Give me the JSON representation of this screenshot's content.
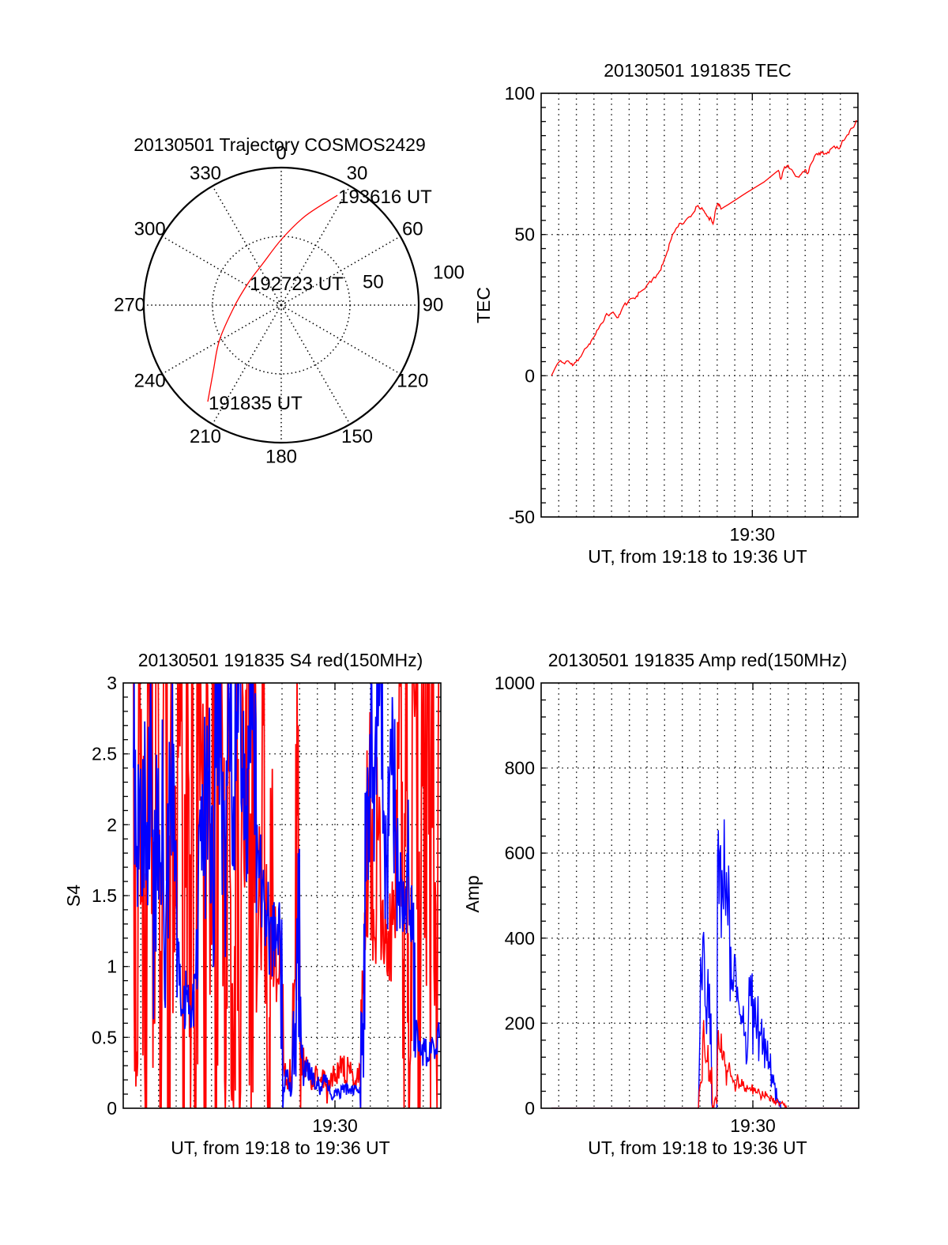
{
  "figure": {
    "colors": {
      "red": "#ff0000",
      "blue": "#0000ff",
      "axis": "#000000"
    }
  },
  "chart_data": [
    {
      "type": "polar",
      "title": "20130501 Trajectory COSMOS2429",
      "rmax": 100,
      "angle_ticks": [
        {
          "value": 0,
          "label": "0"
        },
        {
          "value": 30,
          "label": "30"
        },
        {
          "value": 60,
          "label": "60"
        },
        {
          "value": 90,
          "label": "90"
        },
        {
          "value": 120,
          "label": "120"
        },
        {
          "value": 150,
          "label": "150"
        },
        {
          "value": 180,
          "label": "180"
        },
        {
          "value": 210,
          "label": "210"
        },
        {
          "value": 240,
          "label": "240"
        },
        {
          "value": 270,
          "label": "270"
        },
        {
          "value": 300,
          "label": "300"
        },
        {
          "value": 330,
          "label": "330"
        }
      ],
      "radial_ticks": [
        {
          "value": 50,
          "label": "50"
        },
        {
          "value": 100,
          "label": "100"
        }
      ],
      "grid": true,
      "trajectory": {
        "color": "#ff0000",
        "points_az_r": [
          [
            217.3,
            88.2
          ],
          [
            225.7,
            69.1
          ],
          [
            240.6,
            51.5
          ],
          [
            269.0,
            33.9
          ],
          [
            305.3,
            28.9
          ],
          [
            336.5,
            33.2
          ],
          [
            0.7,
            48.3
          ],
          [
            15.3,
            67.4
          ],
          [
            27.1,
            89.7
          ]
        ]
      },
      "time_labels": [
        {
          "label": "191835 UT",
          "point_index": 0
        },
        {
          "label": "192723 UT",
          "point_index": 4
        },
        {
          "label": "193616 UT",
          "point_index": 8
        }
      ]
    },
    {
      "type": "line",
      "title": "20130501 191835 TEC",
      "xlabel": "UT, from 19:18 to 19:36 UT",
      "ylabel": "TEC",
      "xlim": [
        0,
        1080
      ],
      "ylim": [
        -50,
        100
      ],
      "yticks": [
        {
          "value": 100,
          "label": "100"
        },
        {
          "value": 50,
          "label": "50"
        },
        {
          "value": 0,
          "label": "0"
        },
        {
          "value": -50,
          "label": "-50"
        }
      ],
      "yminor": 5,
      "xticks": [
        {
          "value": 720,
          "label": "19:30"
        }
      ],
      "xgrid_step": 60,
      "grid": true,
      "series": [
        {
          "color": "#ff0000",
          "points": [
            [
              35,
              0
            ],
            [
              50,
              3.2
            ],
            [
              62,
              5
            ],
            [
              75,
              4.6
            ],
            [
              90,
              5.3
            ],
            [
              100,
              4.4
            ],
            [
              107,
              3.6
            ],
            [
              118,
              4.8
            ],
            [
              130,
              6.2
            ],
            [
              148,
              9.5
            ],
            [
              160,
              10.6
            ],
            [
              170,
              12.2
            ],
            [
              180,
              13.7
            ],
            [
              195,
              16.5
            ],
            [
              210,
              18.8
            ],
            [
              223,
              22
            ],
            [
              235,
              21.8
            ],
            [
              250,
              21.9
            ],
            [
              263,
              20.6
            ],
            [
              272,
              22.7
            ],
            [
              282,
              25
            ],
            [
              295,
              25.8
            ],
            [
              310,
              27.4
            ],
            [
              325,
              28.2
            ],
            [
              336,
              29.6
            ],
            [
              349,
              30.5
            ],
            [
              365,
              32.6
            ],
            [
              380,
              34.2
            ],
            [
              395,
              35.8
            ],
            [
              408,
              37.4
            ],
            [
              418,
              40.6
            ],
            [
              430,
              44
            ],
            [
              440,
              47.5
            ],
            [
              451,
              50.5
            ],
            [
              462,
              52.4
            ],
            [
              476,
              54
            ],
            [
              490,
              54.6
            ],
            [
              505,
              56.3
            ],
            [
              520,
              57.8
            ],
            [
              532,
              60
            ],
            [
              540,
              59.3
            ],
            [
              552,
              58.7
            ],
            [
              562,
              57.2
            ],
            [
              570,
              56
            ],
            [
              580,
              55.4
            ],
            [
              586,
              53.7
            ],
            [
              593,
              58
            ],
            [
              602,
              61
            ],
            [
              608,
              60.6
            ],
            [
              613,
              59
            ],
            [
              650,
              61.4
            ],
            [
              700,
              64.8
            ],
            [
              760,
              68.6
            ],
            [
              800,
              72
            ],
            [
              809,
              72.7
            ],
            [
              817,
              69.6
            ],
            [
              826,
              72.8
            ],
            [
              838,
              74.3
            ],
            [
              850,
              73.2
            ],
            [
              862,
              71.6
            ],
            [
              879,
              70.3
            ],
            [
              888,
              71.6
            ],
            [
              900,
              73
            ],
            [
              908,
              71.5
            ],
            [
              918,
              74.6
            ],
            [
              932,
              77.7
            ],
            [
              944,
              78.2
            ],
            [
              954,
              79.3
            ],
            [
              964,
              78.4
            ],
            [
              973,
              78.5
            ],
            [
              985,
              80.1
            ],
            [
              999,
              81.3
            ],
            [
              1013,
              80.4
            ],
            [
              1024,
              82.2
            ],
            [
              1034,
              83.5
            ],
            [
              1048,
              85.4
            ],
            [
              1061,
              87.7
            ],
            [
              1075,
              90.5
            ]
          ]
        }
      ]
    },
    {
      "type": "line",
      "title": "20130501 191835 S4 red(150MHz)",
      "xlabel": "UT, from 19:18 to 19:36 UT",
      "ylabel": "S4",
      "xlim": [
        0,
        1080
      ],
      "ylim": [
        0,
        3
      ],
      "yticks": [
        {
          "value": 3,
          "label": "3"
        },
        {
          "value": 2.5,
          "label": "2.5"
        },
        {
          "value": 2,
          "label": "2"
        },
        {
          "value": 1.5,
          "label": "1.5"
        },
        {
          "value": 1,
          "label": "1"
        },
        {
          "value": 0.5,
          "label": "0.5"
        },
        {
          "value": 0,
          "label": "0"
        }
      ],
      "yminor": 0.1,
      "xticks": [
        {
          "value": 720,
          "label": "19:30"
        }
      ],
      "xgrid_step": 60,
      "grid": true,
      "series": [
        {
          "color": "#ff0000",
          "t_start": 35,
          "t_step": 10,
          "values": [
            3,
            0.4,
            3,
            1.9,
            0,
            3,
            3,
            0.6,
            3,
            0,
            2.2,
            3,
            0,
            3,
            1.1,
            3,
            3,
            0,
            3,
            0.5,
            3,
            0,
            3,
            2.6,
            0,
            3,
            0.8,
            3,
            0,
            3,
            3,
            0.2,
            3,
            1.5,
            0,
            3,
            0,
            3,
            2.1,
            3,
            0,
            3,
            0.9,
            1.6,
            2.7,
            1.3,
            0,
            1.9,
            1.2,
            0.9,
            1.1,
            0.3,
            0.2,
            0.15,
            0.35,
            0.9,
            2.7,
            0.5,
            0.25,
            0.3,
            0.2,
            0.15,
            0.3,
            0.2,
            0.18,
            0.25,
            0.12,
            0.2,
            0.3,
            0.22,
            0.28,
            0.35,
            0.2,
            0.3,
            0.25,
            0.18,
            0.22,
            0.3,
            0.9,
            1.4,
            2.3,
            1.7,
            1.2,
            1.9,
            1.5,
            1.1,
            1.3,
            0.9,
            1.6,
            1.2,
            2.5,
            3,
            0,
            3,
            0.3,
            3,
            3,
            0,
            3,
            1.2,
            3,
            0,
            3,
            0.4,
            3
          ]
        },
        {
          "color": "#0000ff",
          "t_start": 35,
          "t_step": 10,
          "values": [
            2.4,
            1.7,
            2.1,
            1.5,
            2.3,
            1.9,
            2.6,
            1.4,
            2.0,
            1.7,
            2.2,
            1.3,
            1.8,
            2.4,
            1.6,
            1.2,
            0.75,
            0.68,
            0.8,
            0.7,
            0.72,
            0.95,
            1.6,
            2.2,
            1.9,
            2.7,
            2.0,
            1.6,
            2.4,
            3,
            2.1,
            1.8,
            2.6,
            3,
            2.2,
            2.8,
            3,
            2.4,
            1.9,
            2.7,
            3,
            2.5,
            2.0,
            1.8,
            1.6,
            1.4,
            1.2,
            1.35,
            1.0,
            1.3,
            1.1,
            0.15,
            0.22,
            0.12,
            0.3,
            0.6,
            1.8,
            0.4,
            0.25,
            0.3,
            0.25,
            0.2,
            0.15,
            0.18,
            0.12,
            0.2,
            0.15,
            0.1,
            0.08,
            0.12,
            0.1,
            0.13,
            0.15,
            0.12,
            0.1,
            0.14,
            0.12,
            0.15,
            0.6,
            1.6,
            2.2,
            3,
            2.4,
            2.8,
            3,
            2.1,
            1.7,
            2.3,
            2.9,
            2.0,
            1.5,
            1.6,
            1.3,
            1.8,
            1.4,
            1.2,
            0.5,
            0.4,
            0.38,
            0.42,
            0.36,
            0.4,
            0.45,
            0.38,
            0.5
          ]
        }
      ]
    },
    {
      "type": "line",
      "title": "20130501 191835 Amp red(150MHz)",
      "xlabel": "UT, from 19:18 to 19:36 UT",
      "ylabel": "Amp",
      "xlim": [
        0,
        1080
      ],
      "ylim": [
        0,
        1000
      ],
      "yticks": [
        {
          "value": 1000,
          "label": "1000"
        },
        {
          "value": 800,
          "label": "800"
        },
        {
          "value": 600,
          "label": "600"
        },
        {
          "value": 400,
          "label": "400"
        },
        {
          "value": 200,
          "label": "200"
        },
        {
          "value": 0,
          "label": "0"
        }
      ],
      "yminor": 40,
      "xticks": [
        {
          "value": 720,
          "label": "19:30"
        }
      ],
      "xgrid_step": 60,
      "grid": true,
      "series": [
        {
          "color": "#0000ff",
          "t_start": 35,
          "t_step": 10,
          "values": [
            0,
            0,
            0,
            0,
            0,
            0,
            0,
            0,
            0,
            0,
            0,
            0,
            0,
            0,
            0,
            0,
            0,
            0,
            0,
            0,
            0,
            0,
            0,
            0,
            0,
            0,
            0,
            0,
            0,
            0,
            0,
            0,
            0,
            0,
            0,
            0,
            0,
            0,
            0,
            0,
            0,
            0,
            0,
            0,
            0,
            0,
            0,
            0,
            0,
            0,
            0,
            300,
            360,
            260,
            150,
            0,
            0,
            480,
            560,
            520,
            430,
            380,
            300,
            250,
            220,
            200,
            180,
            210,
            240,
            190,
            200,
            170,
            140,
            130,
            110,
            80,
            60,
            20,
            0,
            0,
            0,
            0,
            0,
            0,
            0,
            0,
            0,
            0,
            0,
            0,
            0,
            0,
            0,
            0,
            0,
            0,
            0,
            0,
            0,
            0,
            0,
            0,
            0,
            0,
            0
          ]
        },
        {
          "color": "#ff0000",
          "t_start": 35,
          "t_step": 10,
          "values": [
            0,
            0,
            0,
            0,
            0,
            0,
            0,
            0,
            0,
            0,
            0,
            0,
            0,
            0,
            0,
            0,
            0,
            0,
            0,
            0,
            0,
            0,
            0,
            0,
            0,
            0,
            0,
            0,
            0,
            0,
            0,
            0,
            0,
            0,
            0,
            0,
            0,
            0,
            0,
            0,
            0,
            0,
            0,
            0,
            0,
            0,
            0,
            0,
            0,
            0,
            0,
            60,
            150,
            110,
            90,
            5,
            20,
            140,
            120,
            100,
            85,
            75,
            65,
            60,
            55,
            52,
            48,
            45,
            42,
            40,
            36,
            32,
            30,
            30,
            26,
            22,
            18,
            15,
            12,
            8,
            0,
            0,
            0,
            0,
            0,
            0,
            0,
            0,
            0,
            0,
            0,
            0,
            0,
            0,
            0,
            0,
            0,
            0,
            0,
            0,
            0,
            0,
            0,
            0,
            0
          ]
        }
      ]
    }
  ]
}
